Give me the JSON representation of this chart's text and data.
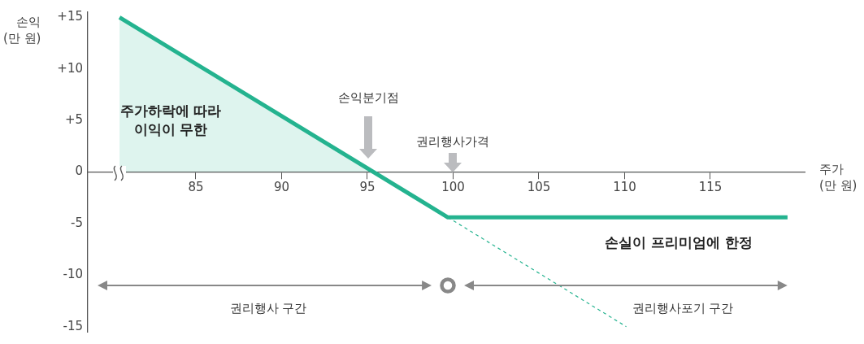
{
  "chart_data": {
    "type": "line",
    "xlabel": "주가\n(만 원)",
    "ylabel": "손익\n(만 원)",
    "series": [
      {
        "type": "area",
        "color": "#24b38f",
        "x": [
          80.55,
          99.7,
          119.5
        ],
        "values": [
          15,
          -4.4,
          -4.4
        ]
      },
      {
        "type": "line",
        "color": "#24b38f",
        "line_style": "dashed",
        "x": [
          99.7,
          110.1
        ],
        "values": [
          -4.4,
          -15
        ]
      }
    ],
    "xlim": [
      78.7,
      120.5
    ],
    "xticks": [
      85,
      90,
      95,
      100,
      105,
      110,
      115
    ],
    "ylim": [
      -15.5,
      15.5
    ],
    "yticks": [
      {
        "value": 15,
        "label": "+15"
      },
      {
        "value": 10,
        "label": "+10"
      },
      {
        "value": 5,
        "label": "+5"
      },
      0,
      -5,
      -10,
      -15
    ],
    "grid": false,
    "legend": false,
    "marker": "none",
    "annotations": [
      "손익분기점",
      {
        "text": "권리행사가격",
        "x": 100,
        "y": 0
      },
      "주가하락에 따라\n이익이 무한",
      "손실이 프리미엄에 한정",
      "권리행사 구간",
      "권리행사포기 구간"
    ]
  }
}
